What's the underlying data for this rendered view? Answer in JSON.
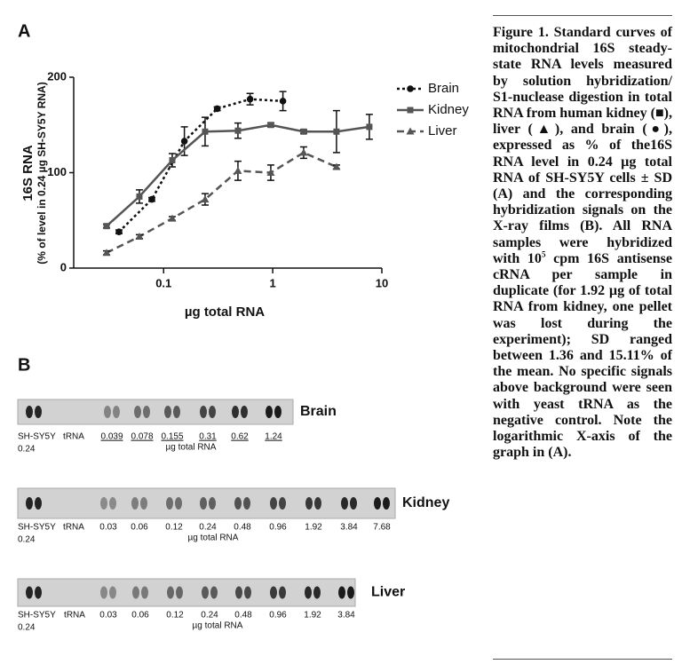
{
  "panel_a_label": "A",
  "panel_b_label": "B",
  "chart_data": {
    "type": "line",
    "ylabel": "16S RNA",
    "ylabel_sub": "(% of level in 0.24 µg SH-SY5Y RNA)",
    "xlabel": "µg total RNA",
    "xscale": "log",
    "xlim": [
      0.015,
      10
    ],
    "xticks": [
      0.1,
      1,
      10
    ],
    "ylim": [
      0,
      200
    ],
    "yticks": [
      0,
      100,
      200
    ],
    "legend": "upper right",
    "series": [
      {
        "name": "Brain",
        "color": "#111111",
        "marker": "circle",
        "dash": "3,3",
        "x": [
          0.039,
          0.078,
          0.155,
          0.31,
          0.62,
          1.24
        ],
        "values": [
          38,
          72,
          133,
          167,
          177,
          175
        ],
        "errors": [
          2,
          2,
          15,
          2,
          6,
          10
        ]
      },
      {
        "name": "Kidney",
        "color": "#555555",
        "marker": "square",
        "dash": "",
        "x": [
          0.03,
          0.06,
          0.12,
          0.24,
          0.48,
          0.96,
          1.92,
          3.84,
          7.68
        ],
        "values": [
          44,
          75,
          113,
          143,
          144,
          150,
          143,
          143,
          148
        ],
        "errors": [
          2,
          7,
          7,
          15,
          8,
          2,
          2,
          22,
          13
        ]
      },
      {
        "name": "Liver",
        "color": "#555555",
        "marker": "triangle",
        "dash": "8,5",
        "x": [
          0.03,
          0.06,
          0.12,
          0.24,
          0.48,
          0.96,
          1.92,
          3.84
        ],
        "values": [
          16,
          33,
          52,
          72,
          102,
          100,
          121,
          106
        ],
        "errors": [
          2,
          2,
          2,
          6,
          10,
          8,
          6,
          2
        ]
      }
    ]
  },
  "blots": [
    {
      "name": "Brain",
      "underline": true,
      "lanes": [
        "SH-SY5Y",
        "tRNA",
        "0.039",
        "0.078",
        "0.155",
        "0.31",
        "0.62",
        "1.24"
      ],
      "control_amount": "0.24",
      "unit": "µg total RNA"
    },
    {
      "name": "Kidney",
      "underline": false,
      "lanes": [
        "SH-SY5Y",
        "tRNA",
        "0.03",
        "0.06",
        "0.12",
        "0.24",
        "0.48",
        "0.96",
        "1.92",
        "3.84",
        "7.68"
      ],
      "control_amount": "0.24",
      "unit": "µg total RNA"
    },
    {
      "name": "Liver",
      "underline": false,
      "lanes": [
        "SH-SY5Y",
        "tRNA",
        "0.03",
        "0.06",
        "0.12",
        "0.24",
        "0.48",
        "0.96",
        "1.92",
        "3.84"
      ],
      "control_amount": "0.24",
      "unit": "µg total RNA"
    }
  ],
  "caption": {
    "before": "Figure 1. Standard curves of mitochondrial 16S steady-state RNA levels measured by solution hybridization/ S1-nuclease digestion in total RNA from human kidney (■), liver (▲), and brain (●), expressed as % of the16S RNA level in 0.24 µg total RNA of SH-SY5Y cells ± SD (A) and the corresponding hybridization signals on the X-ray films (B). All RNA samples were hybridized with 10",
    "sup": "5",
    "after": " cpm 16S antisense cRNA per sample in duplicate (for 1.92 µg of total RNA from kidney, one pellet was lost during the experiment); SD ranged between 1.36 and 15.11% of the mean. No specific signals above background were seen with yeast tRNA as the negative control. Note the logarithmic X-axis of the graph in (A)."
  }
}
